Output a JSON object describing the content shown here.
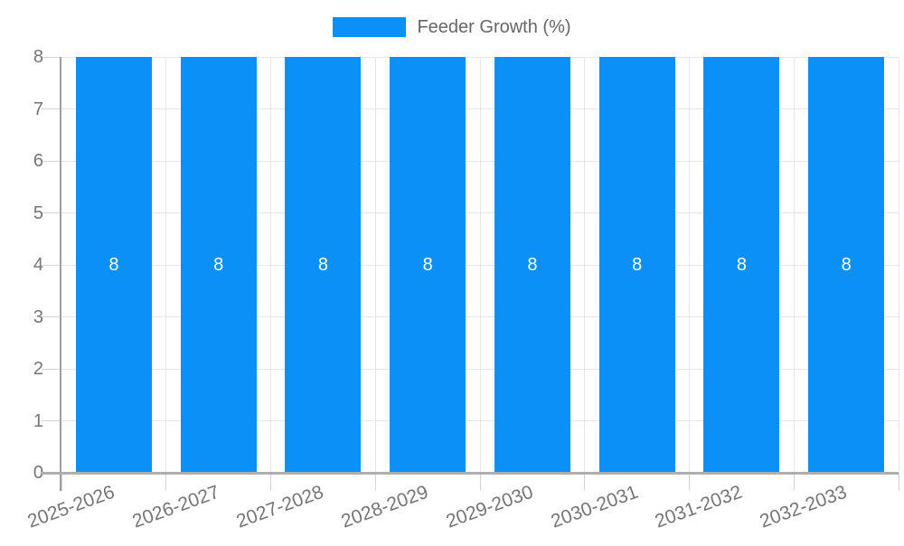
{
  "chart_data": {
    "type": "bar",
    "title": "",
    "legend": {
      "position": "top",
      "entries": [
        "Feeder Growth (%)"
      ]
    },
    "categories": [
      "2025-2026",
      "2026-2027",
      "2027-2028",
      "2028-2029",
      "2029-2030",
      "2030-2031",
      "2031-2032",
      "2032-2033"
    ],
    "series": [
      {
        "name": "Feeder Growth (%)",
        "values": [
          8,
          8,
          8,
          8,
          8,
          8,
          8,
          8
        ]
      }
    ],
    "bar_value_labels": [
      "8",
      "8",
      "8",
      "8",
      "8",
      "8",
      "8",
      "8"
    ],
    "xlabel": "",
    "ylabel": "",
    "ylim": [
      0,
      8
    ],
    "yticks": [
      0,
      1,
      2,
      3,
      4,
      5,
      6,
      7,
      8
    ],
    "grid": true,
    "colors": {
      "bar": "#0a90f6",
      "bar_label": "#ffffff",
      "axis_tick_label": "#757575",
      "legend_text": "#666666",
      "grid_line": "#e6e6e6",
      "tick_mark": "#d4d4d4",
      "axis_line": "#9f9f9f",
      "baseline": "#aeaeae"
    }
  }
}
